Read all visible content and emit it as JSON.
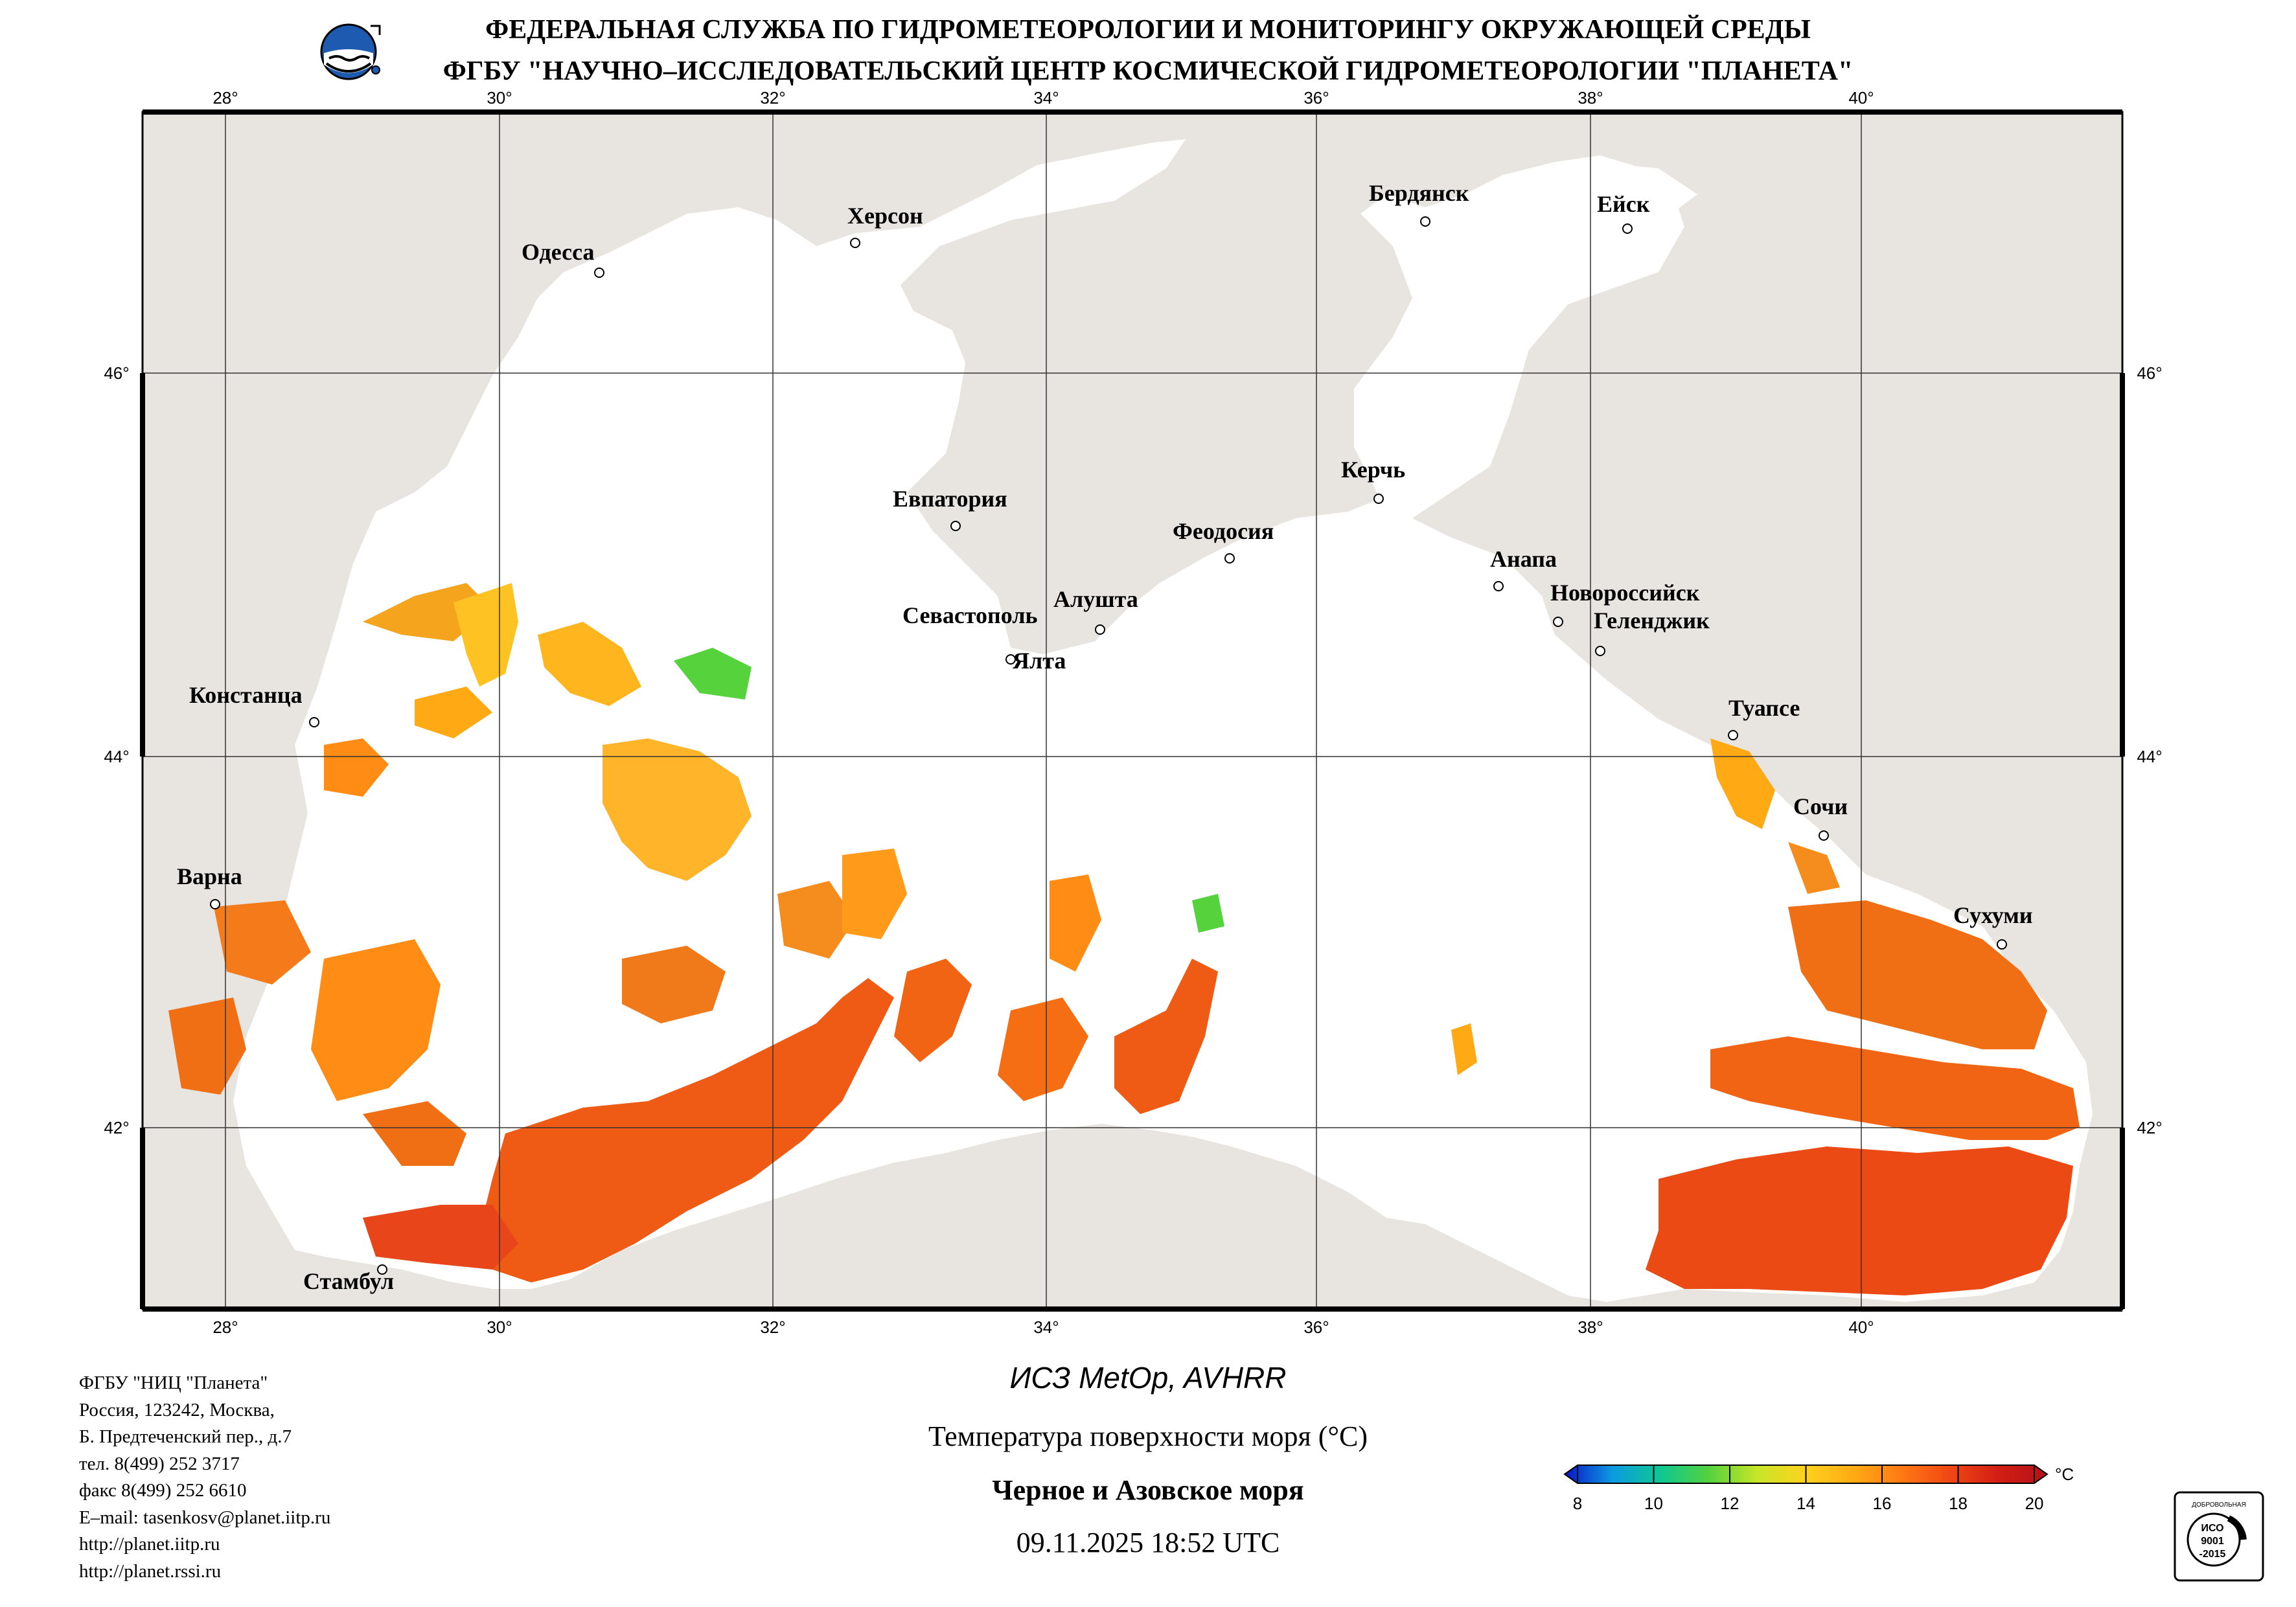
{
  "header": {
    "line1": "ФЕДЕРАЛЬНАЯ СЛУЖБА ПО ГИДРОМЕТЕОРОЛОГИИ И МОНИТОРИНГУ ОКРУЖАЮЩЕЙ СРЕДЫ",
    "line2": "ФГБУ \"НАУЧНО–ИССЛЕДОВАТЕЛЬСКИЙ ЦЕНТР КОСМИЧЕСКОЙ ГИДРОМЕТЕОРОЛОГИИ \"ПЛАНЕТА\""
  },
  "map": {
    "lon_ticks": [
      "28°",
      "30°",
      "32°",
      "34°",
      "36°",
      "38°",
      "40°"
    ],
    "lat_ticks": [
      "46°",
      "44°",
      "42°"
    ],
    "cities": [
      {
        "name": "Одесса"
      },
      {
        "name": "Херсон"
      },
      {
        "name": "Бердянск"
      },
      {
        "name": "Ейск"
      },
      {
        "name": "Евпатория"
      },
      {
        "name": "Керчь"
      },
      {
        "name": "Феодосия"
      },
      {
        "name": "Анапа"
      },
      {
        "name": "Новороссийск"
      },
      {
        "name": "Геленджик"
      },
      {
        "name": "Севастополь"
      },
      {
        "name": "Алушта"
      },
      {
        "name": "Ялта"
      },
      {
        "name": "Констанца"
      },
      {
        "name": "Туапсе"
      },
      {
        "name": "Сочи"
      },
      {
        "name": "Варна"
      },
      {
        "name": "Сухуми"
      },
      {
        "name": "Стамбул"
      }
    ],
    "colors": {
      "land": "#e8e4e0",
      "sea": "#ffffff",
      "border": "#000000"
    }
  },
  "footer": {
    "org": "ФГБУ \"НИЦ \"Планета\"",
    "addr1": "Россия, 123242, Москва,",
    "addr2": "Б. Предтеченский пер., д.7",
    "phone": "тел. 8(499) 252 3717",
    "fax": "факс 8(499) 252 6610",
    "email": "E–mail: tasenkosv@planet.iitp.ru",
    "url1": "http://planet.iitp.ru",
    "url2": "http://planet.rssi.ru"
  },
  "caption": {
    "satellite": "ИСЗ MetOp, AVHRR",
    "parameter": "Температура поверхности моря (°C)",
    "region": "Черное и Азовское моря",
    "datetime": "09.11.2025 18:52 UTC"
  },
  "colorbar": {
    "unit": "°C",
    "ticks": [
      "8",
      "10",
      "12",
      "14",
      "16",
      "18",
      "20"
    ],
    "colors": [
      "#0a14c8",
      "#0c9be0",
      "#0fc890",
      "#55d23c",
      "#c8e628",
      "#ffd21e",
      "#ffaa14",
      "#ff7814",
      "#f04614",
      "#d21e14",
      "#b4101a"
    ]
  },
  "certificate": {
    "line1": "ДОБРОВОЛЬНАЯ",
    "line2": "ИСО",
    "line3": "9001",
    "line4": "-2015"
  }
}
